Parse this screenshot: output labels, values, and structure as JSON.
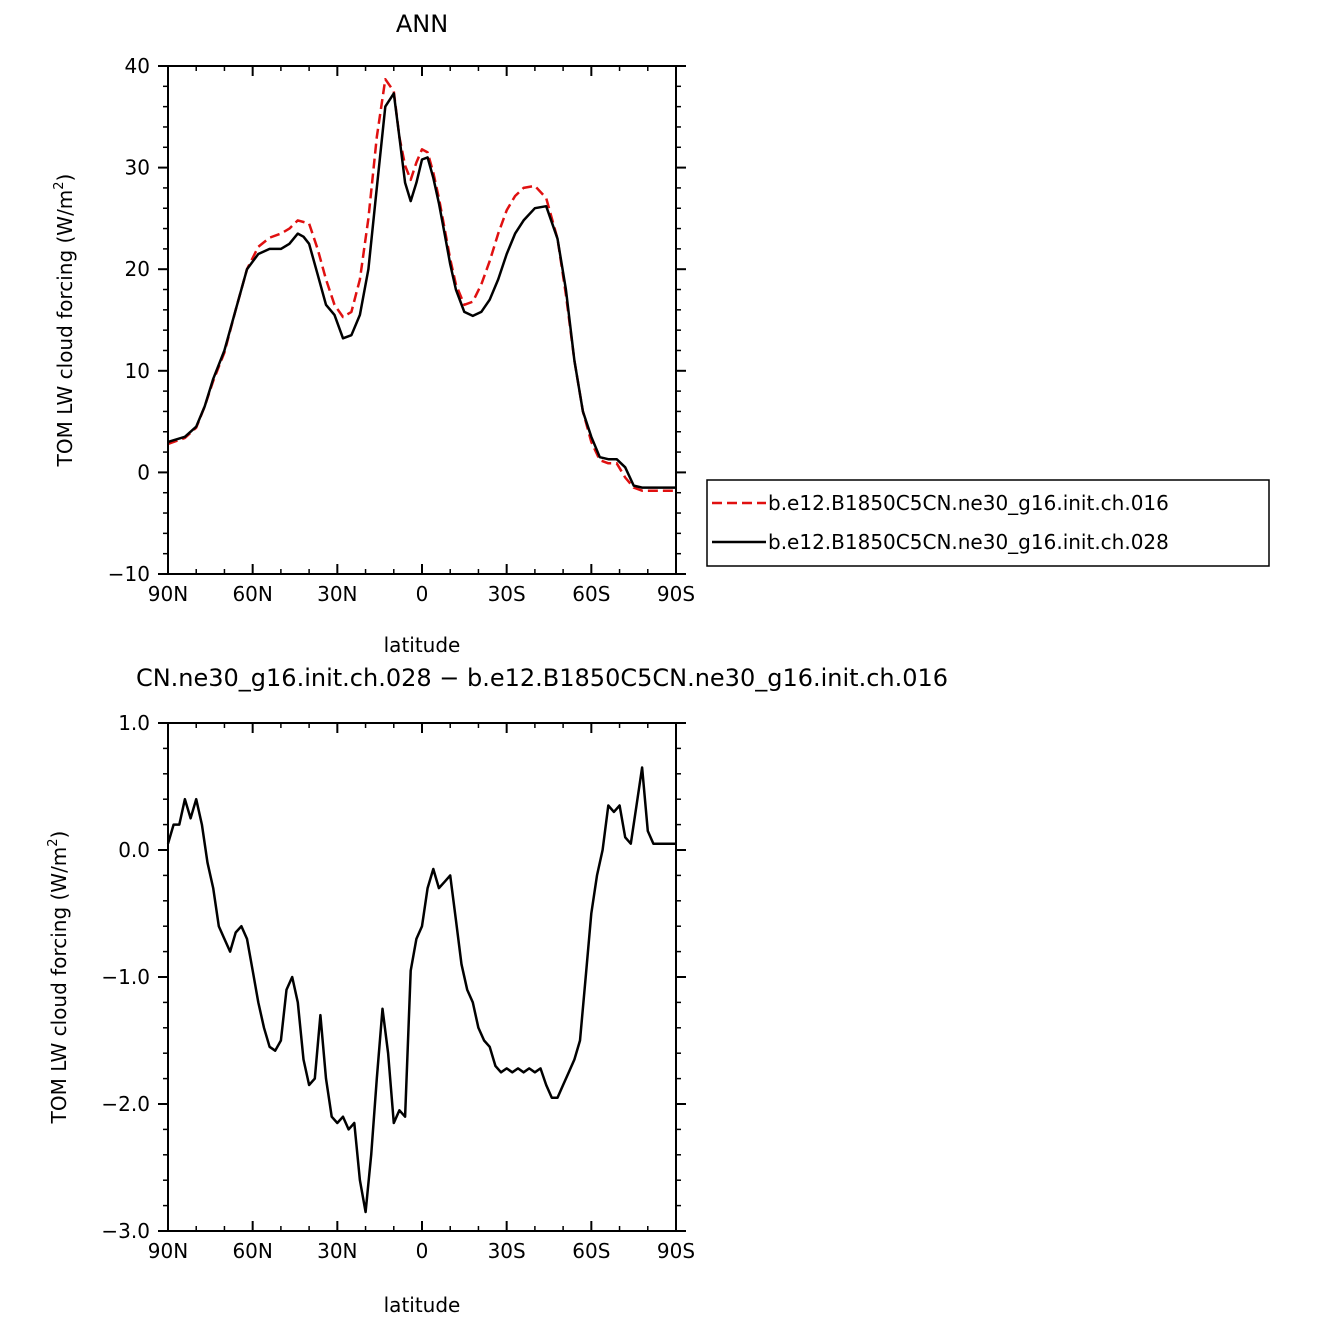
{
  "chart_data": [
    {
      "type": "line",
      "title": "ANN",
      "xlabel": "latitude",
      "ylabel": "TOM LW cloud forcing (W/m²)",
      "ylabel_main": "TOM LW cloud forcing (W/m",
      "ylabel_sup": "2",
      "ylabel_close": ")",
      "xlim": [
        90,
        -90
      ],
      "ylim": [
        -10,
        40
      ],
      "xticks": [
        90,
        60,
        30,
        0,
        -30,
        -60,
        -90
      ],
      "xtick_labels": [
        "90N",
        "60N",
        "30N",
        "0",
        "30S",
        "60S",
        "90S"
      ],
      "yticks": [
        -10,
        0,
        10,
        20,
        30,
        40
      ],
      "ytick_labels": [
        "−10",
        "0",
        "10",
        "20",
        "30",
        "40"
      ],
      "legend_position": "right",
      "series": [
        {
          "name": "b.e12.B1850C5CN.ne30_g16.init.ch.016",
          "color": "#e01010",
          "dash": "dashed",
          "x": [
            90,
            84,
            80,
            77,
            74,
            70,
            66,
            62,
            58,
            54,
            50,
            47,
            44,
            40,
            37,
            34,
            31,
            28,
            25,
            22,
            19,
            16,
            13,
            10,
            8,
            6,
            4,
            2,
            0,
            -2,
            -4,
            -6,
            -8,
            -10,
            -12,
            -15,
            -18,
            -21,
            -24,
            -27,
            -30,
            -33,
            -36,
            -40,
            -44,
            -48,
            -51,
            -54,
            -57,
            -60,
            -63,
            -66,
            -69,
            -72,
            -75,
            -78,
            -81,
            -84,
            -86,
            -88,
            -90
          ],
          "y": [
            2.8,
            3.4,
            4.4,
            6.5,
            9.0,
            11.8,
            16.0,
            20.0,
            22.2,
            23.1,
            23.5,
            24.0,
            24.8,
            24.5,
            22.0,
            19.0,
            16.5,
            15.3,
            15.8,
            19.0,
            25.0,
            33.0,
            38.7,
            37.5,
            33.0,
            30.2,
            28.8,
            30.5,
            31.8,
            31.5,
            29.5,
            27.0,
            24.0,
            21.0,
            18.5,
            16.5,
            16.8,
            18.5,
            20.8,
            23.5,
            25.8,
            27.2,
            28.0,
            28.2,
            27.0,
            23.0,
            17.5,
            11.0,
            6.0,
            3.0,
            1.2,
            0.9,
            0.9,
            -0.5,
            -1.5,
            -1.8,
            -1.8,
            -1.8,
            -1.8,
            -1.8,
            -1.8
          ]
        },
        {
          "name": "b.e12.B1850C5CN.ne30_g16.init.ch.028",
          "color": "#000000",
          "dash": "solid",
          "x": [
            90,
            84,
            80,
            77,
            74,
            70,
            66,
            62,
            58,
            54,
            50,
            47,
            44,
            42,
            40,
            37,
            34,
            31,
            28,
            25,
            22,
            19,
            16,
            13,
            10,
            8,
            6,
            4,
            2,
            0,
            -2,
            -4,
            -6,
            -8,
            -10,
            -12,
            -15,
            -18,
            -21,
            -24,
            -27,
            -30,
            -33,
            -36,
            -40,
            -44,
            -48,
            -51,
            -54,
            -57,
            -60,
            -63,
            -66,
            -69,
            -72,
            -75,
            -78,
            -81,
            -84,
            -86,
            -88,
            -90
          ],
          "y": [
            3.0,
            3.5,
            4.5,
            6.5,
            9.2,
            12.0,
            16.0,
            20.0,
            21.5,
            22.0,
            22.0,
            22.5,
            23.5,
            23.2,
            22.5,
            19.5,
            16.5,
            15.5,
            13.2,
            13.5,
            15.5,
            20.0,
            28.0,
            36.0,
            37.3,
            33.0,
            28.5,
            26.7,
            28.5,
            30.8,
            31.0,
            29.0,
            26.5,
            23.5,
            20.5,
            18.0,
            15.8,
            15.4,
            15.8,
            17.0,
            19.0,
            21.5,
            23.5,
            24.8,
            26.0,
            26.2,
            23.0,
            18.0,
            11.0,
            6.0,
            3.5,
            1.5,
            1.3,
            1.3,
            0.5,
            -1.3,
            -1.5,
            -1.5,
            -1.5,
            -1.5,
            -1.5,
            -1.5
          ]
        }
      ]
    },
    {
      "type": "line",
      "title": "CN.ne30_g16.init.ch.028 − b.e12.B1850C5CN.ne30_g16.init.ch.016",
      "xlabel": "latitude",
      "ylabel": "TOM LW cloud forcing (W/m²)",
      "ylabel_main": "TOM LW cloud forcing (W/m",
      "ylabel_sup": "2",
      "ylabel_close": ")",
      "xlim": [
        90,
        -90
      ],
      "ylim": [
        -3.0,
        1.0
      ],
      "xticks": [
        90,
        60,
        30,
        0,
        -30,
        -60,
        -90
      ],
      "xtick_labels": [
        "90N",
        "60N",
        "30N",
        "0",
        "30S",
        "60S",
        "90S"
      ],
      "yticks": [
        -3.0,
        -2.0,
        -1.0,
        0.0,
        1.0
      ],
      "ytick_labels": [
        "−3.0",
        "−2.0",
        "−1.0",
        "0.0",
        "1.0"
      ],
      "series": [
        {
          "color": "#000000",
          "dash": "solid",
          "x": [
            90,
            88,
            86,
            84,
            82,
            80,
            78,
            76,
            74,
            72,
            70,
            68,
            66,
            64,
            62,
            60,
            58,
            56,
            54,
            52,
            50,
            48,
            46,
            44,
            42,
            40,
            38,
            36,
            34,
            32,
            30,
            28,
            26,
            24,
            22,
            20,
            18,
            16,
            14,
            12,
            10,
            8,
            6,
            4,
            2,
            0,
            -2,
            -4,
            -6,
            -8,
            -10,
            -12,
            -14,
            -16,
            -18,
            -20,
            -22,
            -24,
            -26,
            -28,
            -30,
            -32,
            -34,
            -36,
            -38,
            -40,
            -42,
            -44,
            -46,
            -48,
            -50,
            -52,
            -54,
            -56,
            -58,
            -60,
            -62,
            -64,
            -66,
            -68,
            -70,
            -72,
            -74,
            -76,
            -78,
            -80,
            -82,
            -84,
            -86,
            -88,
            -90
          ],
          "y": [
            0.05,
            0.2,
            0.2,
            0.4,
            0.25,
            0.4,
            0.2,
            -0.1,
            -0.3,
            -0.6,
            -0.7,
            -0.8,
            -0.65,
            -0.6,
            -0.7,
            -0.95,
            -1.2,
            -1.4,
            -1.55,
            -1.58,
            -1.5,
            -1.1,
            -1.0,
            -1.2,
            -1.65,
            -1.85,
            -1.8,
            -1.3,
            -1.8,
            -2.1,
            -2.15,
            -2.1,
            -2.2,
            -2.15,
            -2.6,
            -2.85,
            -2.4,
            -1.8,
            -1.25,
            -1.6,
            -2.15,
            -2.05,
            -2.1,
            -0.95,
            -0.7,
            -0.6,
            -0.3,
            -0.15,
            -0.3,
            -0.25,
            -0.2,
            -0.55,
            -0.9,
            -1.1,
            -1.2,
            -1.4,
            -1.5,
            -1.55,
            -1.7,
            -1.75,
            -1.72,
            -1.75,
            -1.72,
            -1.75,
            -1.72,
            -1.75,
            -1.72,
            -1.85,
            -1.95,
            -1.95,
            -1.85,
            -1.75,
            -1.65,
            -1.5,
            -1.0,
            -0.5,
            -0.2,
            0.0,
            0.35,
            0.3,
            0.35,
            0.1,
            0.05,
            0.35,
            0.65,
            0.15,
            0.05,
            0.05,
            0.05,
            0.05,
            0.05
          ]
        }
      ]
    }
  ]
}
